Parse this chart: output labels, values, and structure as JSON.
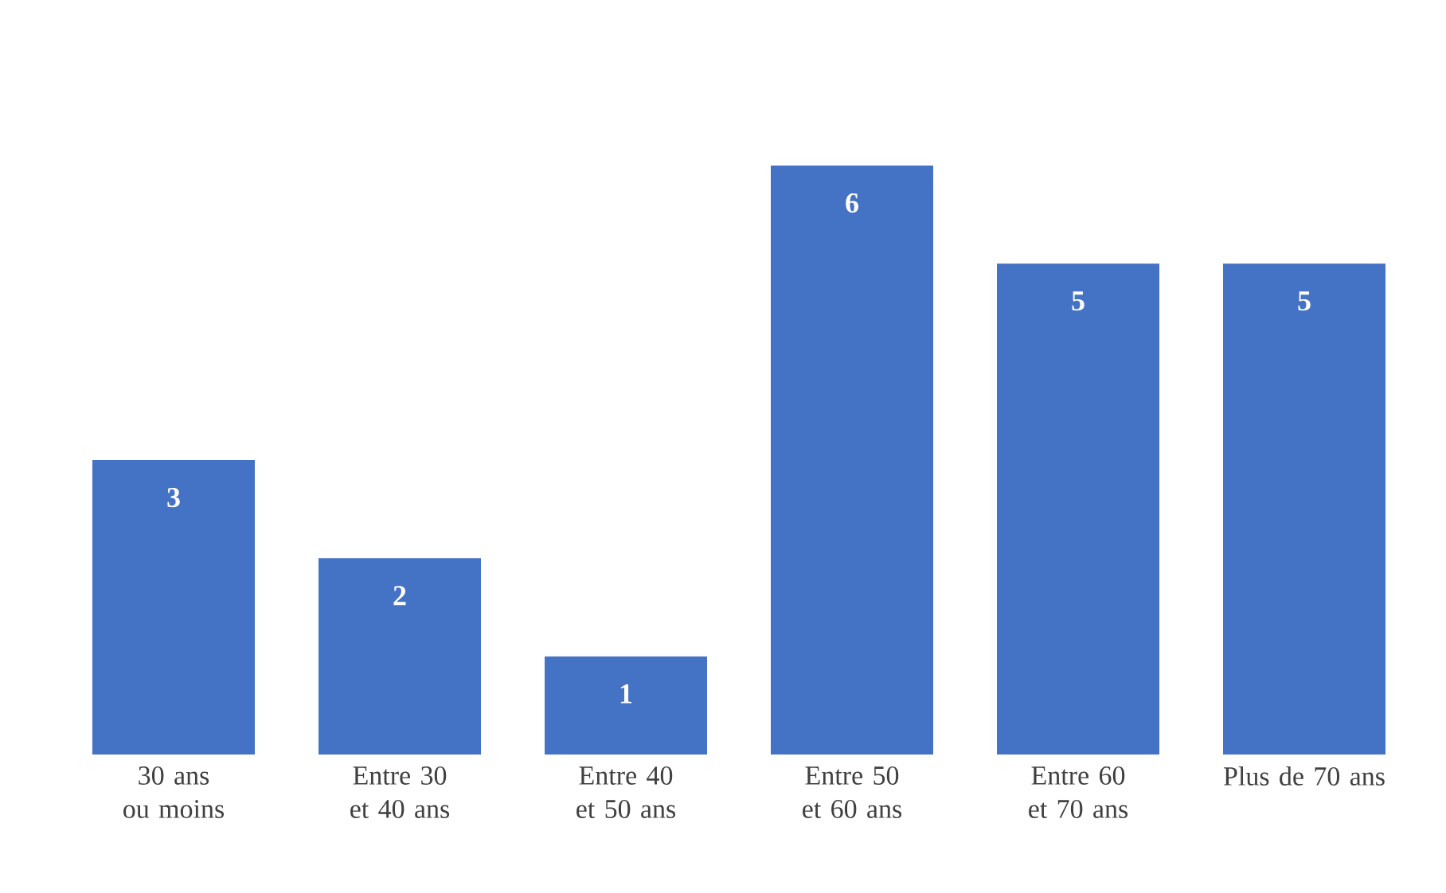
{
  "chart_data": {
    "type": "bar",
    "categories": [
      "30 ans ou moins",
      "Entre 30 et 40 ans",
      "Entre 40 et 50 ans",
      "Entre 50 et 60 ans",
      "Entre 60 et 70 ans",
      "Plus de 70 ans"
    ],
    "values": [
      3,
      2,
      1,
      6,
      5,
      5
    ],
    "color": "#4472c4",
    "data_labels": true
  }
}
